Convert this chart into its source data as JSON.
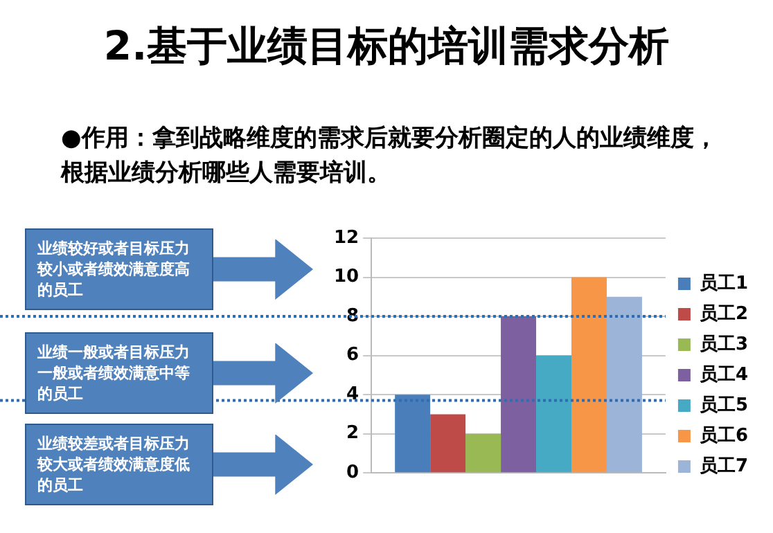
{
  "chart_data": {
    "type": "bar",
    "title": "2.基于业绩目标的培训需求分析",
    "subtitle": "●作用：拿到战略维度的需求后就要分析圈定的人的业绩维度，根据业绩分析哪些人需要培训。",
    "categories": [
      null
    ],
    "series": [
      {
        "name": "员工1",
        "color": "#4a7ebb",
        "values": [
          4
        ]
      },
      {
        "name": "员工2",
        "color": "#be4b48",
        "values": [
          3
        ]
      },
      {
        "name": "员工3",
        "color": "#98b954",
        "values": [
          2
        ]
      },
      {
        "name": "员工4",
        "color": "#7d60a0",
        "values": [
          8
        ]
      },
      {
        "name": "员工5",
        "color": "#46aac5",
        "values": [
          6
        ]
      },
      {
        "name": "员工6",
        "color": "#f79646",
        "values": [
          10
        ]
      },
      {
        "name": "员工7",
        "color": "#9bb4d8",
        "values": [
          9
        ]
      }
    ],
    "ylim": [
      0,
      12
    ],
    "yticks": [
      0,
      2,
      4,
      6,
      8,
      10,
      12
    ],
    "grid": "y",
    "legend": "right",
    "ref_lines": [
      {
        "axis": "y",
        "value": 8,
        "color": "#2e6db4",
        "line_style": "dotted"
      },
      {
        "axis": "y",
        "value": 3.7,
        "color": "#2e6db4",
        "line_style": "dotted"
      }
    ],
    "annotations": [
      "业绩较好或者目标压力较小或者绩效满意度高的员工",
      "业绩一般或者目标压力一般或者绩效满意中等的员工",
      "业绩较差或者目标压力较大或者绩效满意度低的员工"
    ]
  }
}
